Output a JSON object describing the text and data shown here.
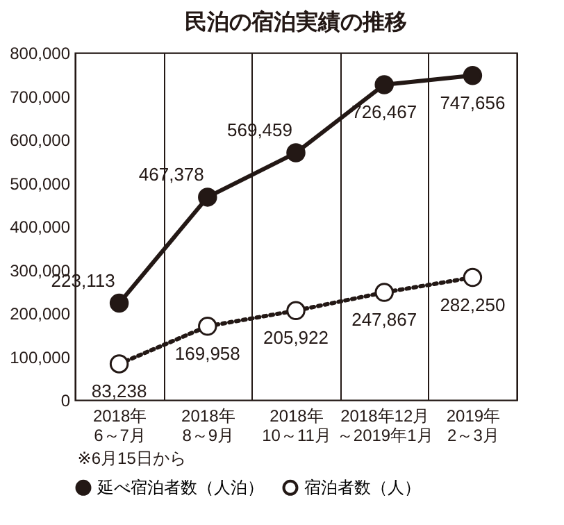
{
  "chart_data": {
    "type": "line",
    "title": "民泊の宿泊実績の推移",
    "categories": [
      "2018年\n6～7月",
      "2018年\n8～9月",
      "2018年\n10～11月",
      "2018年12月～2019年1月",
      "2019年\n2～3月"
    ],
    "series": [
      {
        "name": "延べ宿泊者数（人泊）",
        "color": "#231815",
        "marker": "circle",
        "line_style": "solid",
        "values": [
          223113,
          467378,
          569459,
          726467,
          747656
        ],
        "value_labels": [
          "223,113",
          "467,378",
          "569,459",
          "726,467",
          "747,656"
        ]
      },
      {
        "name": "宿泊者数（人）",
        "color": "#231815",
        "marker": "circle",
        "line_style": "dotted",
        "values": [
          83238,
          169958,
          205922,
          247867,
          282250
        ],
        "value_labels": [
          "83,238",
          "169,958",
          "205,922",
          "247,867",
          "282,250"
        ]
      }
    ],
    "ylim": [
      0,
      800000
    ],
    "yticks": [
      {
        "value": 0,
        "label": "0"
      },
      {
        "value": 100000,
        "label": "100,000"
      },
      {
        "value": 200000,
        "label": "200,000"
      },
      {
        "value": 300000,
        "label": "300,000"
      },
      {
        "value": 400000,
        "label": "400,000"
      },
      {
        "value": 500000,
        "label": "500,000"
      },
      {
        "value": 600000,
        "label": "600,000"
      },
      {
        "value": 700000,
        "label": "700,000"
      },
      {
        "value": 800000,
        "label": "800,000"
      }
    ],
    "annotations": [
      "※6月15日から"
    ],
    "grid": "x",
    "legend": "bottom"
  }
}
